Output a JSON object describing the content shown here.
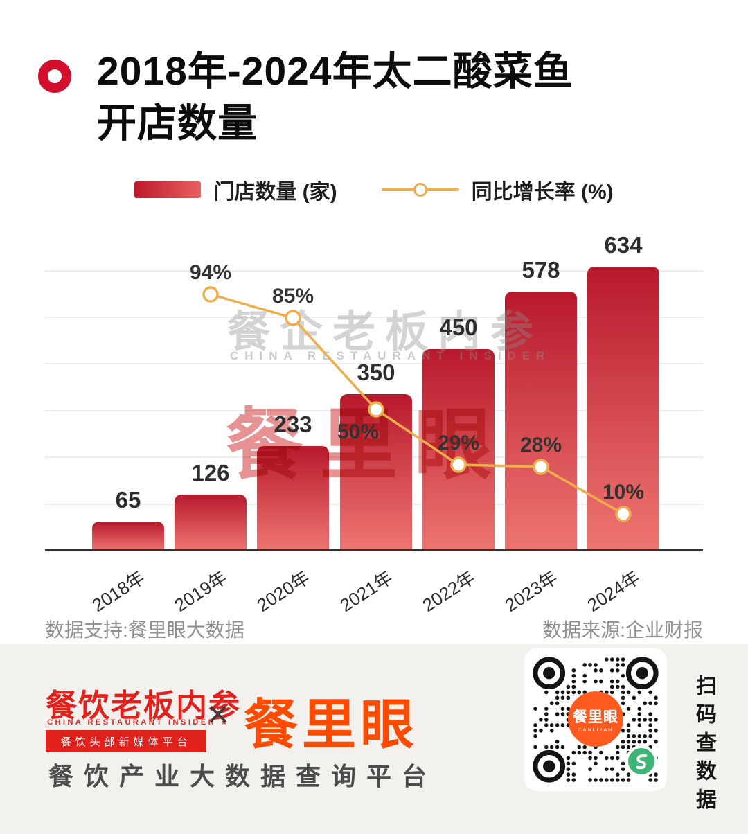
{
  "header": {
    "title_lines": [
      "2018年-2024年太二酸菜鱼",
      "开店数量"
    ]
  },
  "legend": {
    "bars_label": "门店数量 (家)",
    "line_label": "同比增长率 (%)"
  },
  "chart_data": {
    "type": "bar",
    "title": "2018年-2024年太二酸菜鱼开店数量",
    "categories": [
      "2018年",
      "2019年",
      "2020年",
      "2021年",
      "2022年",
      "2023年",
      "2024年"
    ],
    "series": [
      {
        "name": "门店数量 (家)",
        "type": "bar",
        "values": [
          65,
          126,
          233,
          350,
          450,
          578,
          634
        ]
      },
      {
        "name": "同比增长率 (%)",
        "type": "line",
        "unit": "%",
        "values": [
          null,
          94,
          85,
          50,
          29,
          28,
          10
        ]
      }
    ],
    "legend_position": "top",
    "grid": "horizontal",
    "ylim": [
      0,
      650
    ],
    "bar_gradient": [
      "#b8192c",
      "#ee7671"
    ],
    "line_color": "#efae4e"
  },
  "watermarks": {
    "primary": "餐企老板内参",
    "primary_sub": "CHINA RESTAURANT INSIDER",
    "secondary": "餐里眼"
  },
  "notes": {
    "left": "数据支持:餐里眼大数据",
    "right": "数据来源:企业财报"
  },
  "footer": {
    "logo_cn": "餐饮老板内参",
    "logo_en": "CHINA RESTAURANT INSIDER ★",
    "logo_tag": "餐饮头部新媒体平台",
    "separator": "×",
    "brand": "餐里眼",
    "tagline": "餐饮产业大数据查询平台",
    "qr": {
      "center_label": "餐里眼",
      "center_sub": "CANLIYAN"
    },
    "scan_text": "扫码查数据"
  },
  "colors": {
    "accent_red": "#d40e2d",
    "bar_top": "#b8192c",
    "bar_bottom": "#ee7671",
    "line_orange": "#efae4e",
    "brand_orange": "#ff4b00",
    "logo_red": "#e1211c",
    "footer_bg": "#f2f1ee",
    "qr_green": "#3eb575"
  }
}
